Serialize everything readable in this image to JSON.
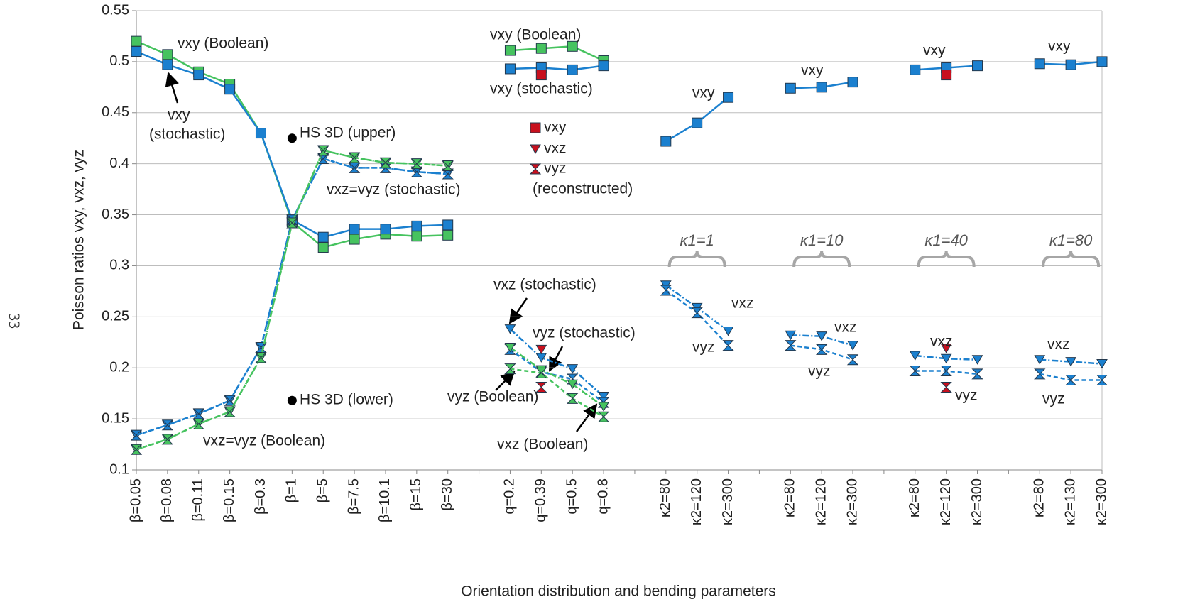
{
  "chart_data": {
    "type": "line",
    "page_number": "33",
    "y_label": "Poisson ratios vxy, vxz, vyz",
    "x_label": "Orientation distribution and bending parameters",
    "categories": [
      "β=0.05",
      "β=0.08",
      "β=0.11",
      "β=0.15",
      "β=0.3",
      "β=1",
      "β=5",
      "β=7.5",
      "β=10.1",
      "β=15",
      "β=30",
      null,
      "q=0.2",
      "q=0.39",
      "q=0.5",
      "q=0.8",
      null,
      "κ2=80",
      "κ2=120",
      "κ2=300",
      null,
      "κ2=80",
      "κ2=120",
      "κ2=300",
      null,
      "κ2=80",
      "κ2=120",
      "κ2=300",
      null,
      "κ2=80",
      "κ2=130",
      "κ2=300"
    ],
    "ylim": [
      0.1,
      0.55
    ],
    "yticks": [
      0.1,
      0.15,
      0.2,
      0.25,
      0.3,
      0.35,
      0.4,
      0.45,
      0.5,
      0.55
    ],
    "grid": true,
    "series": [
      {
        "name": "vxy (Boolean)",
        "color": "#46c35f",
        "marker": "square",
        "line": "solid",
        "values": [
          0.52,
          0.507,
          0.49,
          0.478,
          0.43,
          0.343,
          0.318,
          0.326,
          0.331,
          0.329,
          0.33,
          null,
          0.511,
          0.513,
          0.515,
          0.501,
          null,
          null,
          null,
          null,
          null,
          null,
          null,
          null,
          null,
          null,
          null,
          null,
          null,
          null,
          null,
          null
        ]
      },
      {
        "name": "vxy (stochastic)",
        "color": "#1b80cf",
        "marker": "square",
        "line": "solid",
        "values": [
          0.51,
          0.497,
          0.487,
          0.473,
          0.43,
          0.345,
          0.328,
          0.336,
          0.336,
          0.339,
          0.34,
          null,
          0.493,
          0.494,
          0.492,
          0.496,
          null,
          0.422,
          0.44,
          0.465,
          null,
          0.474,
          0.475,
          0.48,
          null,
          0.492,
          0.494,
          0.496,
          null,
          0.498,
          0.497,
          0.5
        ]
      },
      {
        "name": "vxz (stochastic)",
        "color": "#1b80cf",
        "marker": "triangle",
        "line": "dashdot",
        "values": [
          0.134,
          0.144,
          0.155,
          0.168,
          0.22,
          0.345,
          0.405,
          0.396,
          0.396,
          0.392,
          0.39,
          null,
          0.238,
          0.21,
          0.199,
          0.172,
          null,
          0.281,
          0.259,
          0.236,
          null,
          0.232,
          0.231,
          0.222,
          null,
          0.212,
          0.209,
          0.208,
          null,
          0.208,
          0.206,
          0.204
        ]
      },
      {
        "name": "vyz (stochastic)",
        "color": "#1b80cf",
        "marker": "hourglass",
        "line": "dashed",
        "values": [
          0.134,
          0.144,
          0.155,
          0.168,
          0.22,
          0.345,
          0.405,
          0.396,
          0.396,
          0.392,
          0.39,
          null,
          0.218,
          0.196,
          0.189,
          0.166,
          null,
          0.276,
          0.254,
          0.222,
          null,
          0.222,
          0.218,
          0.208,
          null,
          0.197,
          0.197,
          0.194,
          null,
          0.194,
          0.188,
          0.188
        ]
      },
      {
        "name": "vxz (Boolean)",
        "color": "#46c35f",
        "marker": "triangle",
        "line": "dashdot",
        "values": [
          0.12,
          0.13,
          0.145,
          0.157,
          0.21,
          0.342,
          0.413,
          0.406,
          0.401,
          0.4,
          0.398,
          null,
          0.22,
          0.198,
          0.184,
          0.162,
          null,
          null,
          null,
          null,
          null,
          null,
          null,
          null,
          null,
          null,
          null,
          null,
          null,
          null,
          null,
          null
        ]
      },
      {
        "name": "vyz (Boolean)",
        "color": "#46c35f",
        "marker": "hourglass",
        "line": "dashed",
        "values": [
          0.12,
          0.13,
          0.145,
          0.157,
          0.21,
          0.342,
          0.413,
          0.406,
          0.401,
          0.4,
          0.398,
          null,
          0.199,
          0.195,
          0.17,
          0.152,
          null,
          null,
          null,
          null,
          null,
          null,
          null,
          null,
          null,
          null,
          null,
          null,
          null,
          null,
          null,
          null
        ]
      },
      {
        "name": "vxy",
        "color": "#c8101e",
        "marker": "square",
        "line": "none",
        "values": [
          null,
          null,
          null,
          null,
          null,
          null,
          null,
          null,
          null,
          null,
          null,
          null,
          null,
          0.487,
          null,
          null,
          null,
          null,
          null,
          null,
          null,
          null,
          null,
          null,
          null,
          null,
          0.487,
          null,
          null,
          null,
          null,
          null
        ]
      },
      {
        "name": "vxz",
        "color": "#c8101e",
        "marker": "triangle",
        "line": "none",
        "values": [
          null,
          null,
          null,
          null,
          null,
          null,
          null,
          null,
          null,
          null,
          null,
          null,
          null,
          0.218,
          null,
          null,
          null,
          null,
          null,
          null,
          null,
          null,
          null,
          null,
          null,
          null,
          0.219,
          null,
          null,
          null,
          null,
          null
        ]
      },
      {
        "name": "vyz",
        "color": "#c8101e",
        "marker": "hourglass",
        "line": "none",
        "values": [
          null,
          null,
          null,
          null,
          null,
          null,
          null,
          null,
          null,
          null,
          null,
          null,
          null,
          0.181,
          null,
          null,
          null,
          null,
          null,
          null,
          null,
          null,
          null,
          null,
          null,
          null,
          0.181,
          null,
          null,
          null,
          null,
          null
        ]
      },
      {
        "name": "HS 3D (upper)",
        "color": "#000000",
        "marker": "circle",
        "line": "none",
        "values": [
          null,
          null,
          null,
          null,
          null,
          0.425,
          null,
          null,
          null,
          null,
          null,
          null,
          null,
          null,
          null,
          null,
          null,
          null,
          null,
          null,
          null,
          null,
          null,
          null,
          null,
          null,
          null,
          null,
          null,
          null,
          null,
          null
        ]
      },
      {
        "name": "HS 3D (lower)",
        "color": "#000000",
        "marker": "circle",
        "line": "none",
        "values": [
          null,
          null,
          null,
          null,
          null,
          0.168,
          null,
          null,
          null,
          null,
          null,
          null,
          null,
          null,
          null,
          null,
          null,
          null,
          null,
          null,
          null,
          null,
          null,
          null,
          null,
          null,
          null,
          null,
          null,
          null,
          null,
          null
        ]
      }
    ],
    "annotations": [
      "vxy (Boolean)",
      "vxy",
      "(stochastic)",
      "vxz=vyz (stochastic)",
      "vxz=vyz (Boolean)",
      "(reconstructed)",
      "vxy",
      "vxy",
      "vxy",
      "vxy",
      "vxz",
      "vyz",
      "vxz",
      "vyz",
      "vxz",
      "vyz",
      "vxz",
      "vyz"
    ],
    "group_labels": [
      "κ1=1",
      "κ1=10",
      "κ1=40",
      "κ1=80"
    ]
  }
}
